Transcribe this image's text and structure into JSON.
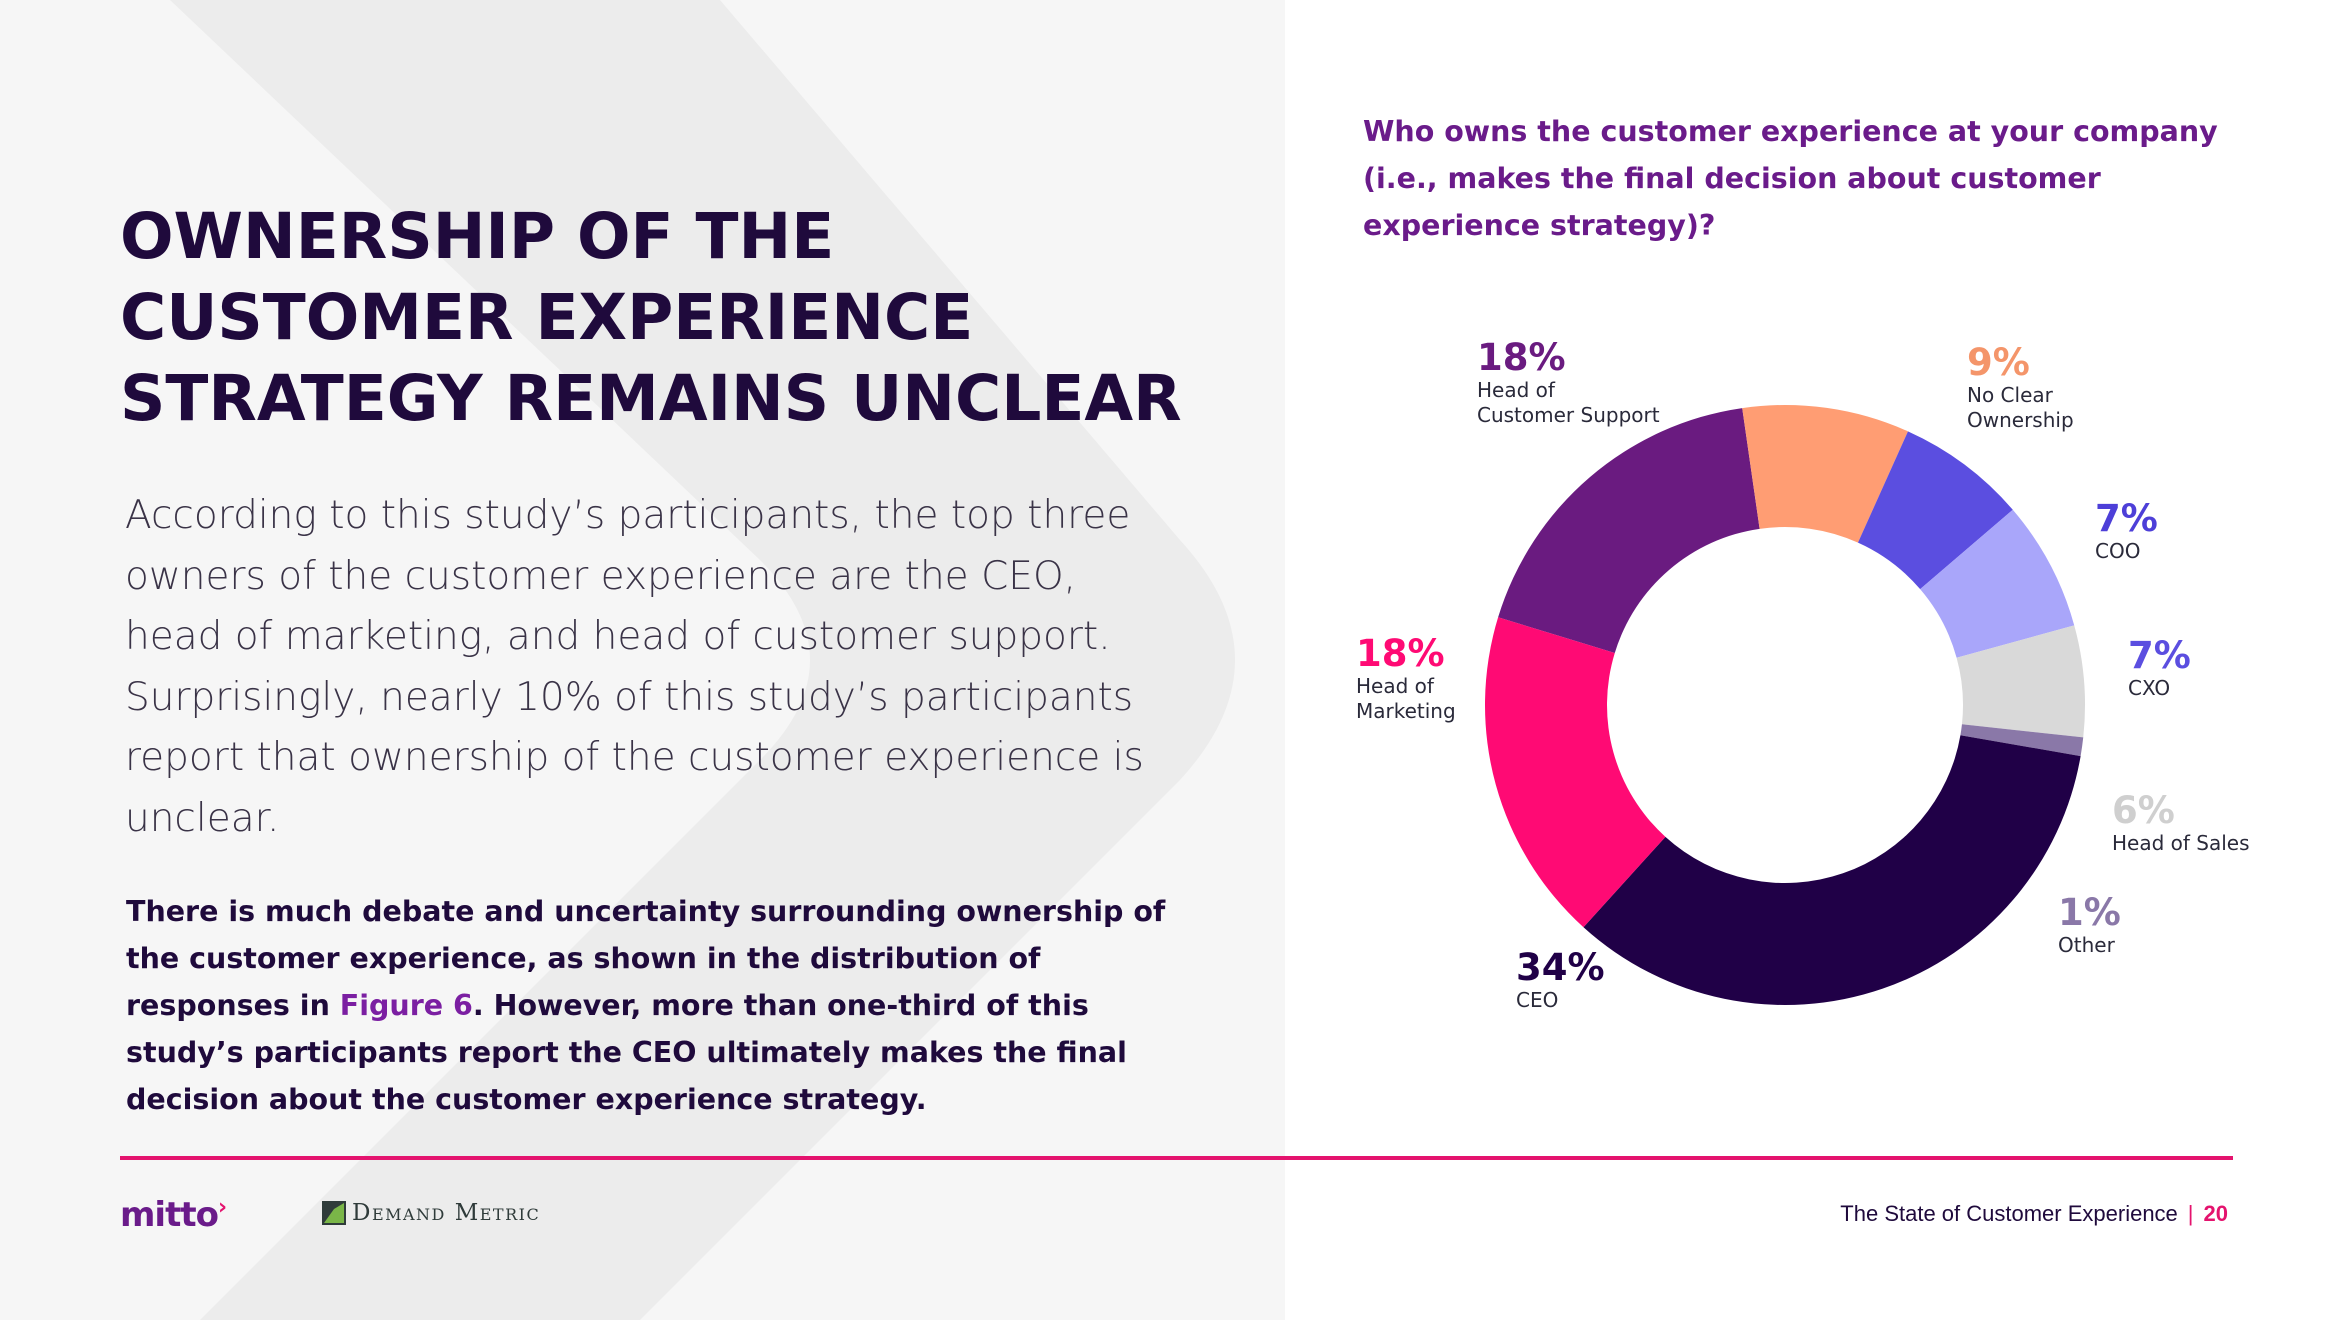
{
  "title": "OWNERSHIP OF THE CUSTOMER EXPERIENCE STRATEGY REMAINS UNCLEAR",
  "lead": "According to this study’s participants, the top three owners of the customer experience are the CEO, head of marketing, and head of customer support. Surprisingly, nearly 10% of this study’s participants report that ownership of the customer experience is unclear.",
  "emphasis": {
    "part1": "There is much debate and uncertainty surrounding ownership of the customer experience, as shown in the distribution of responses in ",
    "link": "Figure 6",
    "part2": ". However, more than one-third of this study’s participants report the CEO ultimately makes the final decision about the customer experience strategy."
  },
  "question": "Who owns the customer experience at your company (i.e., makes the final decision about customer experience strategy)?",
  "chart_data": {
    "type": "pie",
    "title": "Who owns the customer experience at your company (i.e., makes the final decision about customer experience strategy)?",
    "slices": [
      {
        "label": "Head of Customer Support",
        "pct_text": "18%",
        "value": 18,
        "color": "#6a1b80"
      },
      {
        "label": "No Clear Ownership",
        "pct_text": "9%",
        "value": 9,
        "color": "#ff9d73"
      },
      {
        "label": "COO",
        "pct_text": "7%",
        "value": 7,
        "color": "#5b4ee0"
      },
      {
        "label": "CXO",
        "pct_text": "7%",
        "value": 7,
        "color": "#a9a6fa"
      },
      {
        "label": "Head of Sales",
        "pct_text": "6%",
        "value": 6,
        "color": "#d9d9d9"
      },
      {
        "label": "Other",
        "pct_text": "1%",
        "value": 1,
        "color": "#8a78a8"
      },
      {
        "label": "CEO",
        "pct_text": "34%",
        "value": 34,
        "color": "#200047"
      },
      {
        "label": "Head of Marketing",
        "pct_text": "18%",
        "value": 18,
        "color": "#ff0a74"
      }
    ],
    "label_colors": {
      "Head of Customer Support": "#6a1b80",
      "No Clear Ownership": "#f4956a",
      "COO": "#4d3fd8",
      "CXO": "#5b4ee0",
      "Head of Sales": "#cfcfcf",
      "Other": "#8a78a8",
      "CEO": "#200047",
      "Head of Marketing": "#ff0a74"
    }
  },
  "footer": {
    "brand": "mitto",
    "partner": "Demand Metric",
    "report": "The State of Customer Experience",
    "separator": "|",
    "page": "20"
  }
}
